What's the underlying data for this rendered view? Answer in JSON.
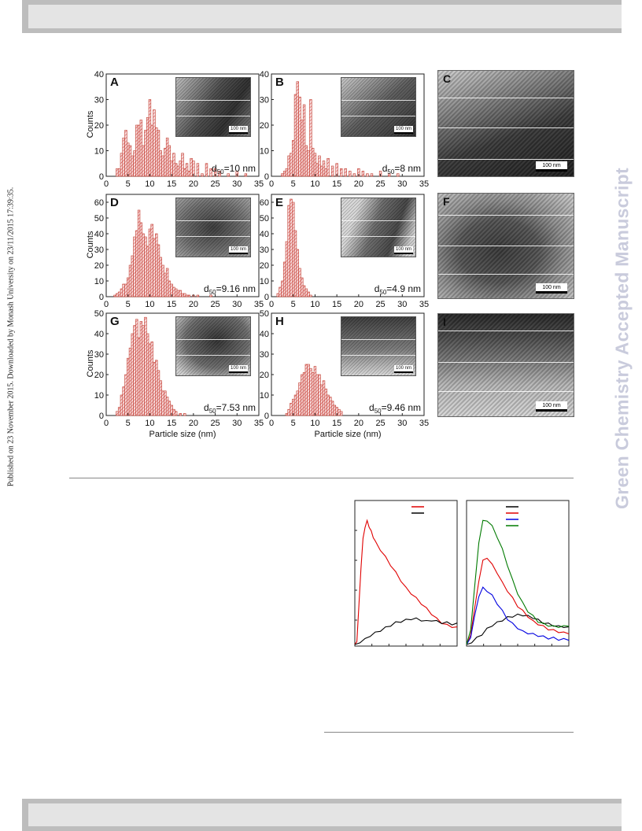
{
  "side_note": "Published on 23 November 2015. Downloaded by Monash University on 23/11/2015 17:39:35.",
  "watermark": "Green Chemistry Accepted Manuscript",
  "histogram_axes": {
    "ylabel": "Counts",
    "xlabel": "Particle size (nm)",
    "x_ticks": [
      "0",
      "5",
      "10",
      "15",
      "20",
      "25",
      "30",
      "35"
    ]
  },
  "scale_label": "100 nm",
  "histograms": [
    {
      "id": "A",
      "d50_main": "d",
      "d50_sub": "50",
      "d50_value": "=10 nm"
    },
    {
      "id": "B",
      "d50_main": "d",
      "d50_sub": "50",
      "d50_value": "=8 nm"
    },
    {
      "id": "D",
      "d50_main": "d",
      "d50_sub": "50",
      "d50_value": "=9.16 nm"
    },
    {
      "id": "E",
      "d50_main": "d",
      "d50_sub": "50",
      "d50_value": "=4.9 nm"
    },
    {
      "id": "G",
      "d50_main": "d",
      "d50_sub": "50",
      "d50_value": "=7.53 nm"
    },
    {
      "id": "H",
      "d50_main": "d",
      "d50_sub": "50",
      "d50_value": "=9.46 nm"
    }
  ],
  "tem_panels": [
    {
      "id": "C"
    },
    {
      "id": "F"
    },
    {
      "id": "I"
    }
  ],
  "chart_data": [
    {
      "type": "bar",
      "panel": "A",
      "x": [
        2.5,
        3,
        3.5,
        4,
        4.5,
        5,
        5.5,
        6,
        6.5,
        7,
        7.5,
        8,
        8.5,
        9,
        9.5,
        10,
        10.5,
        11,
        11.5,
        12,
        12.5,
        13,
        13.5,
        14,
        14.5,
        15,
        15.5,
        16,
        16.5,
        17,
        17.5,
        18,
        18.5,
        19,
        19.5,
        20,
        21,
        22,
        23,
        24,
        25,
        26,
        28,
        30,
        32,
        34
      ],
      "values": [
        3,
        3,
        9,
        15,
        18,
        13,
        12,
        8,
        10,
        20,
        20,
        22,
        12,
        18,
        23,
        30,
        20,
        26,
        19,
        18,
        10,
        8,
        11,
        15,
        12,
        6,
        9,
        5,
        4,
        6,
        9,
        3,
        5,
        2,
        7,
        6,
        5,
        1,
        5,
        3,
        3,
        2,
        1,
        2,
        1,
        0
      ],
      "xlim": [
        0,
        35
      ],
      "ylim": [
        0,
        40
      ],
      "y_ticks": [
        0,
        10,
        20,
        30,
        40
      ]
    },
    {
      "type": "bar",
      "panel": "B",
      "x": [
        2.5,
        3,
        3.5,
        4,
        4.5,
        5,
        5.5,
        6,
        6.5,
        7,
        7.5,
        8,
        8.5,
        9,
        9.5,
        10,
        10.5,
        11,
        11.5,
        12,
        12.5,
        13,
        14,
        15,
        16,
        17,
        18,
        19,
        20,
        21,
        22,
        23,
        25,
        27,
        29
      ],
      "values": [
        1,
        2,
        3,
        8,
        9,
        14,
        32,
        37,
        31,
        22,
        28,
        12,
        10,
        30,
        11,
        9,
        5,
        8,
        4,
        6,
        3,
        7,
        4,
        5,
        3,
        3,
        2,
        1,
        3,
        2,
        1,
        1,
        2,
        1,
        1
      ],
      "xlim": [
        0,
        35
      ],
      "ylim": [
        0,
        40
      ],
      "y_ticks": [
        0,
        10,
        20,
        30,
        40
      ]
    },
    {
      "type": "bar",
      "panel": "D",
      "x": [
        2,
        2.5,
        3,
        3.5,
        4,
        4.5,
        5,
        5.5,
        6,
        6.5,
        7,
        7.5,
        8,
        8.5,
        9,
        9.5,
        10,
        10.5,
        11,
        11.5,
        12,
        12.5,
        13,
        13.5,
        14,
        14.5,
        15,
        15.5,
        16,
        16.5,
        17,
        17.5,
        18,
        18.5,
        19,
        20,
        21,
        22,
        24
      ],
      "values": [
        1,
        2,
        3,
        5,
        8,
        8,
        12,
        20,
        26,
        38,
        42,
        55,
        47,
        40,
        38,
        32,
        43,
        46,
        37,
        40,
        33,
        25,
        20,
        15,
        18,
        10,
        8,
        6,
        5,
        4,
        4,
        2,
        2,
        1,
        1,
        1,
        1,
        0,
        1
      ],
      "xlim": [
        0,
        35
      ],
      "ylim": [
        0,
        65
      ],
      "y_ticks": [
        0,
        10,
        20,
        30,
        40,
        50,
        60
      ]
    },
    {
      "type": "bar",
      "panel": "E",
      "x": [
        1.5,
        2,
        2.5,
        3,
        3.5,
        4,
        4.5,
        5,
        5.5,
        6,
        6.5,
        7,
        7.5,
        8,
        8.5,
        9
      ],
      "values": [
        2,
        6,
        10,
        22,
        35,
        58,
        62,
        60,
        42,
        30,
        18,
        12,
        7,
        5,
        3,
        1
      ],
      "xlim": [
        0,
        35
      ],
      "ylim": [
        0,
        65
      ],
      "y_ticks": [
        0,
        10,
        20,
        30,
        40,
        50,
        60
      ]
    },
    {
      "type": "bar",
      "panel": "G",
      "x": [
        2.5,
        3,
        3.5,
        4,
        4.5,
        5,
        5.5,
        6,
        6.5,
        7,
        7.5,
        8,
        8.5,
        9,
        9.5,
        10,
        10.5,
        11,
        11.5,
        12,
        12.5,
        13,
        13.5,
        14,
        14.5,
        15,
        15.5,
        16,
        17,
        18
      ],
      "values": [
        2,
        4,
        10,
        14,
        20,
        28,
        33,
        40,
        44,
        47,
        38,
        46,
        44,
        48,
        40,
        35,
        36,
        26,
        27,
        22,
        17,
        12,
        12,
        9,
        7,
        5,
        3,
        2,
        1,
        1
      ],
      "xlim": [
        0,
        35
      ],
      "ylim": [
        0,
        50
      ],
      "y_ticks": [
        0,
        10,
        20,
        30,
        40,
        50
      ]
    },
    {
      "type": "bar",
      "panel": "H",
      "x": [
        3.5,
        4,
        4.5,
        5,
        5.5,
        6,
        6.5,
        7,
        7.5,
        8,
        8.5,
        9,
        9.5,
        10,
        10.5,
        11,
        11.5,
        12,
        12.5,
        13,
        13.5,
        14,
        14.5,
        15,
        15.5,
        16
      ],
      "values": [
        1,
        3,
        6,
        8,
        10,
        12,
        16,
        20,
        21,
        25,
        25,
        23,
        21,
        24,
        20,
        20,
        15,
        17,
        13,
        10,
        9,
        7,
        5,
        4,
        3,
        2
      ],
      "xlim": [
        0,
        35
      ],
      "ylim": [
        0,
        50
      ],
      "y_ticks": [
        0,
        10,
        20,
        30,
        40,
        50
      ]
    },
    {
      "type": "line",
      "panel": "profile-left",
      "series": [
        {
          "color": "#e00000",
          "x": [
            0,
            2,
            4,
            6,
            8,
            10,
            12,
            14,
            16,
            18,
            20,
            25,
            30,
            35,
            40,
            45,
            50,
            55,
            60,
            65,
            70,
            75,
            80,
            85,
            90,
            95,
            100
          ],
          "y": [
            0,
            3,
            30,
            60,
            82,
            92,
            96,
            92,
            88,
            84,
            80,
            74,
            68,
            62,
            56,
            50,
            44,
            40,
            36,
            32,
            28,
            24,
            20,
            17,
            15,
            14,
            13
          ]
        },
        {
          "color": "#000000",
          "x": [
            0,
            5,
            10,
            15,
            20,
            25,
            30,
            35,
            40,
            45,
            50,
            55,
            60,
            65,
            70,
            75,
            80,
            85,
            90,
            95,
            100
          ],
          "y": [
            0,
            2,
            4,
            7,
            9,
            11,
            13,
            15,
            17,
            18,
            19,
            20,
            20,
            19,
            18,
            19,
            18,
            17,
            17,
            16,
            16
          ]
        }
      ],
      "xlim": [
        0,
        100
      ],
      "ylim": [
        0,
        100
      ]
    },
    {
      "type": "line",
      "panel": "profile-right",
      "series": [
        {
          "color": "#000000",
          "x": [
            0,
            5,
            10,
            15,
            20,
            25,
            30,
            35,
            40,
            45,
            50,
            55,
            60,
            65,
            70,
            75,
            80,
            85,
            90,
            95,
            100
          ],
          "y": [
            0,
            2,
            5,
            8,
            12,
            15,
            17,
            19,
            21,
            22,
            23,
            23,
            22,
            21,
            19,
            17,
            16,
            15,
            14,
            14,
            13
          ]
        },
        {
          "color": "#e00000",
          "x": [
            0,
            4,
            8,
            12,
            16,
            20,
            25,
            30,
            35,
            40,
            45,
            50,
            55,
            60,
            65,
            70,
            75,
            80,
            85,
            90,
            95,
            100
          ],
          "y": [
            0,
            8,
            28,
            50,
            65,
            68,
            62,
            56,
            48,
            42,
            36,
            30,
            26,
            22,
            18,
            16,
            14,
            12,
            11,
            10,
            9,
            9
          ]
        },
        {
          "color": "#0000e0",
          "x": [
            0,
            4,
            8,
            12,
            16,
            20,
            25,
            30,
            35,
            40,
            45,
            50,
            55,
            60,
            65,
            70,
            75,
            80,
            85,
            90,
            95,
            100
          ],
          "y": [
            0,
            6,
            22,
            38,
            44,
            42,
            38,
            32,
            26,
            20,
            16,
            13,
            10,
            9,
            8,
            7,
            6,
            5,
            5,
            4,
            4,
            4
          ]
        },
        {
          "color": "#007a00",
          "x": [
            0,
            4,
            8,
            12,
            16,
            20,
            25,
            30,
            35,
            40,
            45,
            50,
            55,
            60,
            65,
            70,
            75,
            80,
            85,
            90,
            95,
            100
          ],
          "y": [
            0,
            12,
            45,
            80,
            96,
            97,
            92,
            84,
            74,
            62,
            50,
            40,
            32,
            26,
            22,
            18,
            16,
            15,
            14,
            14,
            14,
            15
          ]
        }
      ],
      "xlim": [
        0,
        100
      ],
      "ylim": [
        0,
        100
      ]
    }
  ]
}
